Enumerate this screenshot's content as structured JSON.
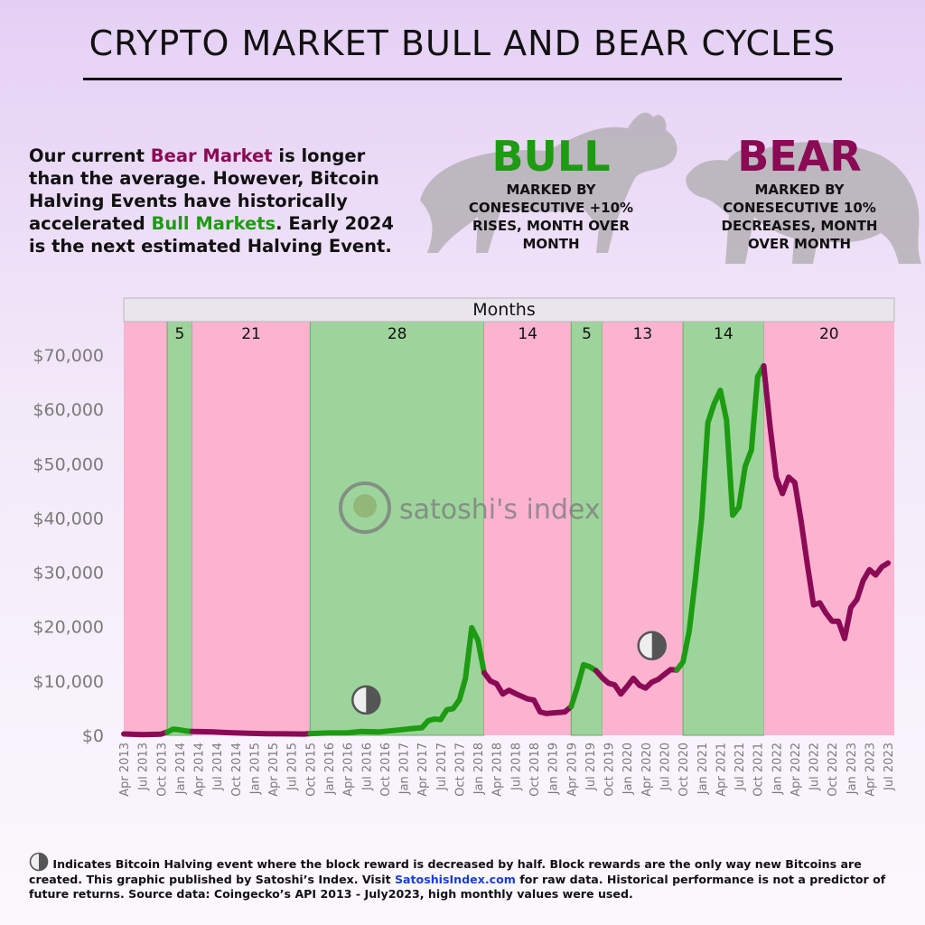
{
  "title": "CRYPTO MARKET BULL AND BEAR CYCLES",
  "intro": {
    "part1": "Our current ",
    "bear_term": "Bear Market",
    "part2": " is longer than the average. However, Bitcoin Halving Events have historically accelerated ",
    "bull_term": "Bull Markets",
    "part3": ". Early 2024 is the next estimated Halving Event."
  },
  "bull_legend": {
    "word": "BULL",
    "desc": "MARKED BY CONESECUTIVE +10% RISES, MONTH OVER MONTH",
    "color": "#1d9b12"
  },
  "bear_legend": {
    "word": "BEAR",
    "desc": "MARKED BY CONESECUTIVE 10% DECREASES, MONTH OVER MONTH",
    "color": "#8b0a55"
  },
  "watermark": "satoshi's index",
  "chart_data": {
    "type": "line",
    "months_header": "Months",
    "x_start": "2013-04",
    "x_end": "2023-08",
    "ylim": [
      0,
      76000
    ],
    "y_ticks": [
      0,
      10000,
      20000,
      30000,
      40000,
      50000,
      60000,
      70000
    ],
    "y_tick_labels": [
      "$0",
      "$10,000",
      "$20,000",
      "$30,000",
      "$40,000",
      "$50,000",
      "$60,000",
      "$70,000"
    ],
    "x_tick_labels": [
      "Apr 2013",
      "Jul 2013",
      "Oct 2013",
      "Jan 2014",
      "Apr 2014",
      "Jul 2014",
      "Oct 2014",
      "Jan 2015",
      "Apr 2015",
      "Jul 2015",
      "Oct 2015",
      "Jan 2016",
      "Apr 2016",
      "Jul 2016",
      "Oct 2016",
      "Jan 2017",
      "Apr 2017",
      "Jul 2017",
      "Oct 2017",
      "Jan 2018",
      "Apr 2018",
      "Jul 2018",
      "Oct 2018",
      "Jan 2019",
      "Apr 2019",
      "Jul 2019",
      "Oct 2019",
      "Jan 2020",
      "Apr 2020",
      "Jul 2020",
      "Oct 2020",
      "Jan 2021",
      "Apr 2021",
      "Jul 2021",
      "Oct 2021",
      "Jan 2022",
      "Apr 2022",
      "Jul 2022",
      "Oct 2022",
      "Jan 2023",
      "Apr 2023",
      "Jul 2023"
    ],
    "periods": [
      {
        "type": "bear",
        "start": "2013-04",
        "end": "2013-11",
        "label": ""
      },
      {
        "type": "bull",
        "start": "2013-11",
        "end": "2014-03",
        "label": "5"
      },
      {
        "type": "bear",
        "start": "2014-03",
        "end": "2015-10",
        "label": "21"
      },
      {
        "type": "bull",
        "start": "2015-10",
        "end": "2018-02",
        "label": "28"
      },
      {
        "type": "bear",
        "start": "2018-02",
        "end": "2019-04",
        "label": "14"
      },
      {
        "type": "bull",
        "start": "2019-04",
        "end": "2019-09",
        "label": "5"
      },
      {
        "type": "bear",
        "start": "2019-09",
        "end": "2020-10",
        "label": "13"
      },
      {
        "type": "bull",
        "start": "2020-10",
        "end": "2021-11",
        "label": "14"
      },
      {
        "type": "bear",
        "start": "2021-11",
        "end": "2023-08",
        "label": "20"
      }
    ],
    "halvings": [
      {
        "date": "2016-07",
        "value": 6500
      },
      {
        "date": "2020-05",
        "value": 16500
      }
    ],
    "series": [
      {
        "color": "#8b0a55",
        "points": [
          [
            "2013-04",
            250
          ],
          [
            "2013-07",
            120
          ],
          [
            "2013-10",
            220
          ],
          [
            "2013-11",
            600
          ]
        ]
      },
      {
        "color": "#1d9b12",
        "points": [
          [
            "2013-11",
            600
          ],
          [
            "2013-12",
            1150
          ],
          [
            "2014-01",
            1000
          ],
          [
            "2014-02",
            800
          ],
          [
            "2014-03",
            700
          ]
        ]
      },
      {
        "color": "#8b0a55",
        "points": [
          [
            "2014-03",
            700
          ],
          [
            "2014-06",
            650
          ],
          [
            "2014-09",
            480
          ],
          [
            "2014-12",
            380
          ],
          [
            "2015-03",
            300
          ],
          [
            "2015-06",
            260
          ],
          [
            "2015-09",
            240
          ],
          [
            "2015-10",
            320
          ]
        ]
      },
      {
        "color": "#1d9b12",
        "points": [
          [
            "2015-10",
            320
          ],
          [
            "2016-01",
            430
          ],
          [
            "2016-04",
            450
          ],
          [
            "2016-06",
            700
          ],
          [
            "2016-09",
            620
          ],
          [
            "2016-12",
            950
          ],
          [
            "2017-02",
            1200
          ],
          [
            "2017-04",
            1400
          ],
          [
            "2017-05",
            2700
          ],
          [
            "2017-06",
            3000
          ],
          [
            "2017-07",
            2900
          ],
          [
            "2017-08",
            4700
          ],
          [
            "2017-09",
            4900
          ],
          [
            "2017-10",
            6500
          ],
          [
            "2017-11",
            10500
          ],
          [
            "2017-12",
            19800
          ],
          [
            "2018-01",
            17500
          ],
          [
            "2018-02",
            11500
          ]
        ]
      },
      {
        "color": "#8b0a55",
        "points": [
          [
            "2018-02",
            11500
          ],
          [
            "2018-03",
            10000
          ],
          [
            "2018-04",
            9500
          ],
          [
            "2018-05",
            7600
          ],
          [
            "2018-06",
            8300
          ],
          [
            "2018-07",
            7700
          ],
          [
            "2018-08",
            7200
          ],
          [
            "2018-09",
            6700
          ],
          [
            "2018-10",
            6500
          ],
          [
            "2018-11",
            4300
          ],
          [
            "2018-12",
            4000
          ],
          [
            "2019-01",
            4100
          ],
          [
            "2019-02",
            4200
          ],
          [
            "2019-03",
            4300
          ],
          [
            "2019-04",
            5300
          ]
        ]
      },
      {
        "color": "#1d9b12",
        "points": [
          [
            "2019-04",
            5300
          ],
          [
            "2019-05",
            8900
          ],
          [
            "2019-06",
            13000
          ],
          [
            "2019-07",
            12600
          ],
          [
            "2019-08",
            11900
          ]
        ]
      },
      {
        "color": "#8b0a55",
        "points": [
          [
            "2019-08",
            11900
          ],
          [
            "2019-09",
            10600
          ],
          [
            "2019-10",
            9600
          ],
          [
            "2019-11",
            9300
          ],
          [
            "2019-12",
            7600
          ],
          [
            "2020-01",
            9000
          ],
          [
            "2020-02",
            10500
          ],
          [
            "2020-03",
            9200
          ],
          [
            "2020-04",
            8700
          ],
          [
            "2020-05",
            9800
          ],
          [
            "2020-06",
            10300
          ],
          [
            "2020-07",
            11200
          ],
          [
            "2020-08",
            12100
          ],
          [
            "2020-09",
            12000
          ]
        ]
      },
      {
        "color": "#1d9b12",
        "points": [
          [
            "2020-09",
            12000
          ],
          [
            "2020-10",
            13500
          ],
          [
            "2020-11",
            19200
          ],
          [
            "2020-12",
            28900
          ],
          [
            "2021-01",
            40000
          ],
          [
            "2021-02",
            57500
          ],
          [
            "2021-03",
            61000
          ],
          [
            "2021-04",
            63500
          ],
          [
            "2021-05",
            58000
          ],
          [
            "2021-06",
            40500
          ],
          [
            "2021-07",
            42000
          ],
          [
            "2021-08",
            49500
          ],
          [
            "2021-09",
            52500
          ],
          [
            "2021-10",
            66000
          ],
          [
            "2021-11",
            68000
          ]
        ]
      },
      {
        "color": "#8b0a55",
        "points": [
          [
            "2021-11",
            68000
          ],
          [
            "2021-12",
            57000
          ],
          [
            "2022-01",
            47500
          ],
          [
            "2022-02",
            44500
          ],
          [
            "2022-03",
            47500
          ],
          [
            "2022-04",
            46500
          ],
          [
            "2022-05",
            39500
          ],
          [
            "2022-06",
            31500
          ],
          [
            "2022-07",
            24000
          ],
          [
            "2022-08",
            24400
          ],
          [
            "2022-09",
            22500
          ],
          [
            "2022-10",
            21000
          ],
          [
            "2022-11",
            21000
          ],
          [
            "2022-12",
            17800
          ],
          [
            "2023-01",
            23500
          ],
          [
            "2023-02",
            25000
          ],
          [
            "2023-03",
            28500
          ],
          [
            "2023-04",
            30500
          ],
          [
            "2023-05",
            29500
          ],
          [
            "2023-06",
            31000
          ],
          [
            "2023-07",
            31700
          ]
        ]
      }
    ]
  },
  "footer": {
    "text1": " Indicates Bitcoin Halving event where the block reward is decreased by half. Block rewards are the only way new Bitcoins are created. This graphic published by Satoshi’s Index. Visit ",
    "link": "SatoshisIndex.com",
    "text2": " for raw data. Historical performance is not a predictor of future returns. Source data: Coingecko’s API 2013 - July2023, high monthly values were used."
  },
  "colors": {
    "bull_fill": "#9dd49b",
    "bear_fill": "#fbb3d0",
    "bull_line": "#1d9b12",
    "bear_line": "#8b0a55",
    "axis_text": "#7a7a7a"
  }
}
